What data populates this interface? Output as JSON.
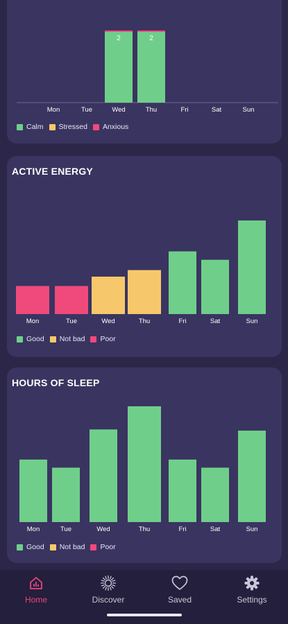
{
  "colors": {
    "green": "#6fcf8a",
    "yellow": "#f7c86b",
    "pink": "#ef4a7b",
    "accent": "#e8457e"
  },
  "mood_card": {
    "legend": [
      {
        "label": "Calm",
        "color": "#6fcf8a"
      },
      {
        "label": "Stressed",
        "color": "#f7c86b"
      },
      {
        "label": "Anxious",
        "color": "#ef4a7b"
      }
    ]
  },
  "energy_card": {
    "title": "ACTIVE ENERGY",
    "legend": [
      {
        "label": "Good",
        "color": "#6fcf8a"
      },
      {
        "label": "Not bad",
        "color": "#f7c86b"
      },
      {
        "label": "Poor",
        "color": "#ef4a7b"
      }
    ]
  },
  "sleep_card": {
    "title": "HOURS OF SLEEP",
    "legend": [
      {
        "label": "Good",
        "color": "#6fcf8a"
      },
      {
        "label": "Not bad",
        "color": "#f7c86b"
      },
      {
        "label": "Poor",
        "color": "#ef4a7b"
      }
    ]
  },
  "chart_data": [
    {
      "type": "bar",
      "title": "",
      "categories": [
        "Mon",
        "Tue",
        "Wed",
        "Thu",
        "Fri",
        "Sat",
        "Sun"
      ],
      "values": [
        0,
        0,
        2,
        2,
        0,
        0,
        0
      ],
      "bar_labels": [
        "",
        "",
        "2",
        "2",
        "",
        "",
        ""
      ],
      "bar_colors": [
        "green",
        "green",
        "green",
        "green",
        "green",
        "green",
        "green"
      ],
      "ylim": [
        0,
        2
      ]
    },
    {
      "type": "bar",
      "title": "ACTIVE ENERGY",
      "categories": [
        "Mon",
        "Tue",
        "Wed",
        "Thu",
        "Fri",
        "Sat",
        "Sun"
      ],
      "values": [
        3,
        3,
        4,
        4.7,
        6.7,
        5.8,
        10
      ],
      "bar_colors": [
        "pink",
        "pink",
        "yellow",
        "yellow",
        "green",
        "green",
        "green"
      ],
      "ylim": [
        0,
        10
      ]
    },
    {
      "type": "bar",
      "title": "HOURS OF SLEEP",
      "categories": [
        "Mon",
        "Tue",
        "Wed",
        "Thu",
        "Fri",
        "Sat",
        "Sun"
      ],
      "values": [
        5.4,
        4.7,
        8,
        10,
        5.4,
        4.7,
        7.9
      ],
      "bar_colors": [
        "green",
        "green",
        "green",
        "green",
        "green",
        "green",
        "green"
      ],
      "ylim": [
        0,
        10
      ]
    }
  ],
  "nav": {
    "items": [
      {
        "label": "Home",
        "icon": "chart-home-icon",
        "active": true
      },
      {
        "label": "Discover",
        "icon": "sun-burst-icon",
        "active": false
      },
      {
        "label": "Saved",
        "icon": "heart-icon",
        "active": false
      },
      {
        "label": "Settings",
        "icon": "gear-icon",
        "active": false
      }
    ]
  }
}
